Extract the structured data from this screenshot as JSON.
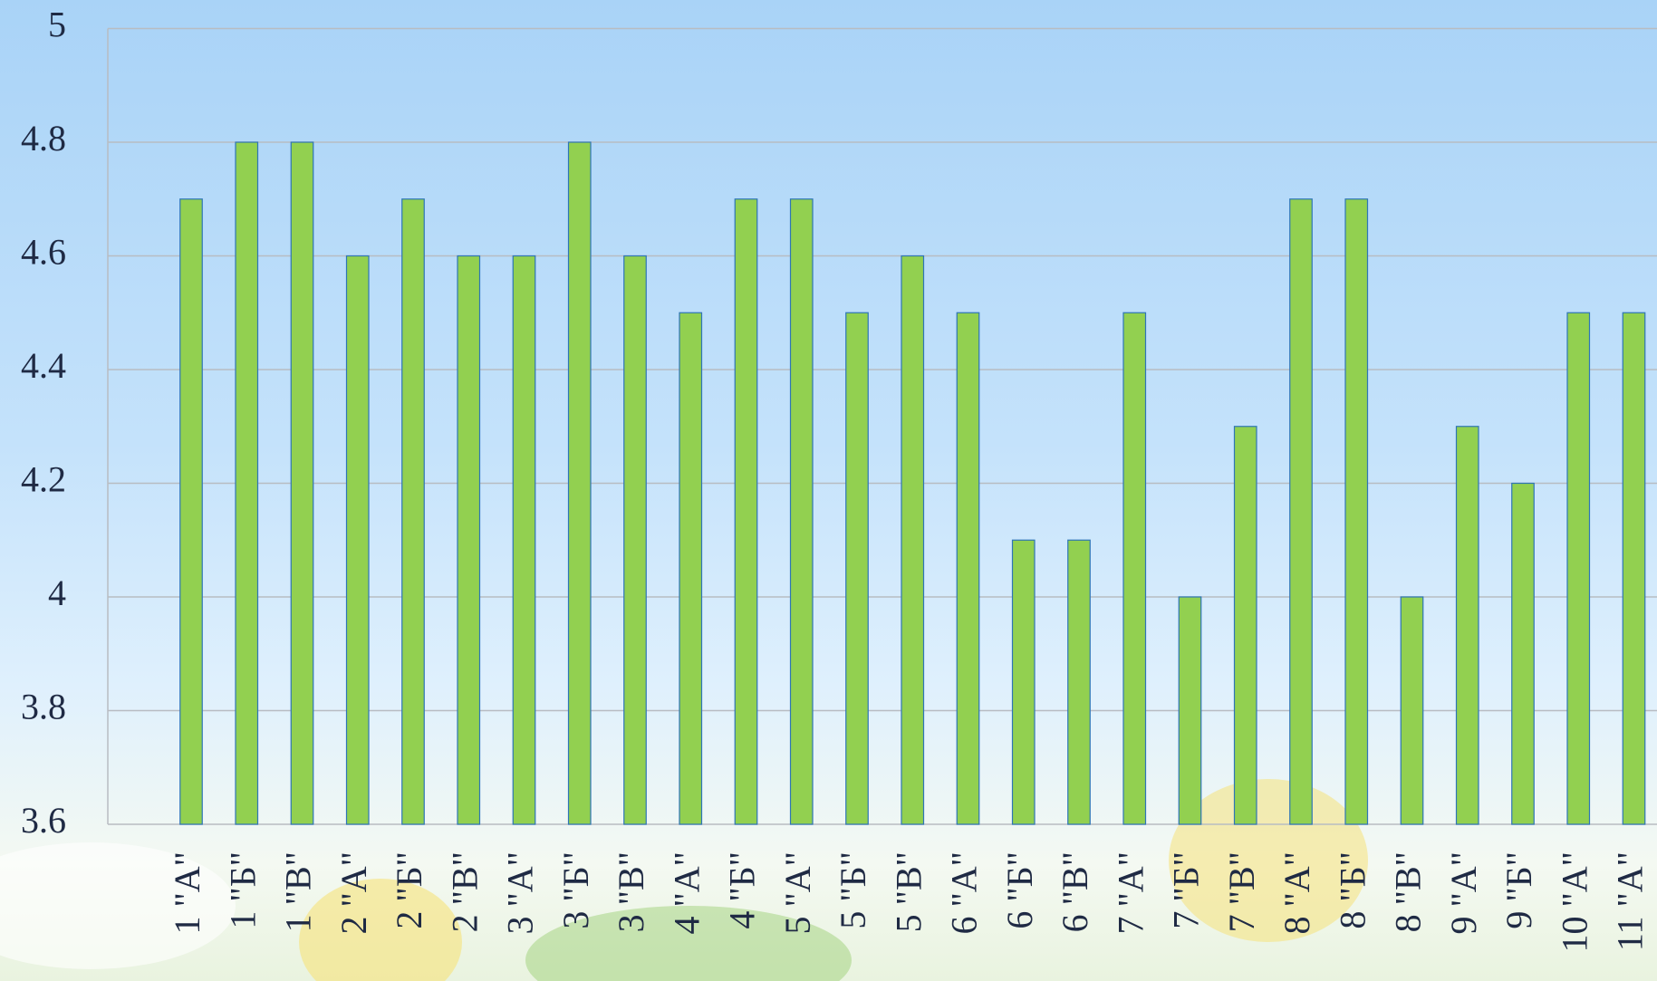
{
  "chart_data": {
    "type": "bar",
    "categories": [
      "1 \"А\"",
      "1 \"Б\"",
      "1 \"В\"",
      "2 \"А\"",
      "2 \"Б\"",
      "2 \"В\"",
      "3 \"А\"",
      "3 \"Б\"",
      "3 \"В\"",
      "4 \"А\"",
      "4 \"Б\"",
      "5 \"А\"",
      "5 \"Б\"",
      "5 \"В\"",
      "6 \"А\"",
      "6 \"Б\"",
      "6 \"В\"",
      "7 \"А\"",
      "7 \"Б\"",
      "7 \"В\"",
      "8 \"А\"",
      "8 \"Б\"",
      "8 \"В\"",
      "9 \"А\"",
      "9 \"Б\"",
      "10 \"А\"",
      "11 \"А\""
    ],
    "values": [
      4.7,
      4.8,
      4.8,
      4.6,
      4.7,
      4.6,
      4.6,
      4.8,
      4.6,
      4.5,
      4.7,
      4.7,
      4.5,
      4.6,
      4.5,
      4.1,
      4.1,
      4.5,
      4.0,
      4.3,
      4.7,
      4.7,
      4.0,
      4.3,
      4.2,
      4.5,
      4.5
    ],
    "color": "#92d050",
    "ylim": [
      3.6,
      5
    ],
    "yticks": [
      3.6,
      3.8,
      4,
      4.2,
      4.4,
      4.6,
      4.8,
      5
    ],
    "grid": true
  }
}
